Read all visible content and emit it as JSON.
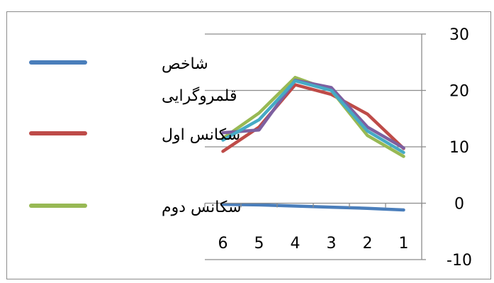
{
  "chart_data": {
    "type": "line",
    "categories": [
      "6",
      "5",
      "4",
      "3",
      "2",
      "1"
    ],
    "series": [
      {
        "name": "شاخص قلمروگرایی",
        "color": "#4a7ebb",
        "values": [
          -0.2,
          -0.3,
          -0.5,
          -0.7,
          -0.9,
          -1.2
        ]
      },
      {
        "name": "سکانس اول",
        "color": "#be4b48",
        "values": [
          9.2,
          13.5,
          21.0,
          19.3,
          15.8,
          9.7
        ]
      },
      {
        "name": "سکانس دوم",
        "color": "#98b954",
        "values": [
          11.5,
          16.0,
          22.3,
          20.0,
          12.0,
          8.3
        ]
      },
      {
        "values": [
          12.5,
          13.0,
          21.8,
          20.5,
          13.5,
          9.8
        ],
        "color": "#7d60a0"
      },
      {
        "values": [
          11.2,
          14.8,
          21.7,
          20.0,
          12.8,
          9.0
        ],
        "color": "#46aac5"
      }
    ],
    "y_ticks": [
      "30",
      "20",
      "10",
      "0",
      "-10"
    ],
    "ylim": [
      -10,
      30
    ],
    "grid": true,
    "legend_position": "left"
  }
}
